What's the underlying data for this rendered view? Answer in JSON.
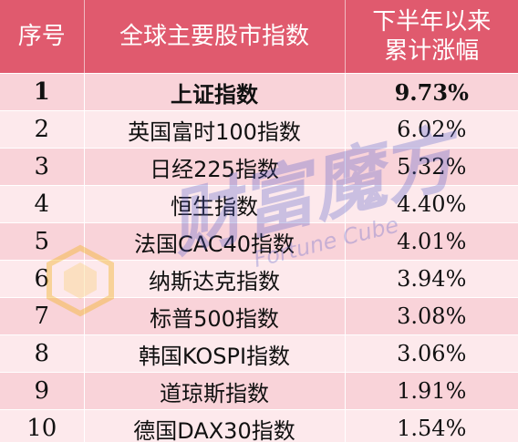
{
  "header": {
    "rank_label": "序号",
    "name_label": "全球主要股市指数",
    "change_label_line1": "下半年以来",
    "change_label_line2": "累计涨幅"
  },
  "rows": [
    {
      "rank": "1",
      "name": "上证指数",
      "change": "9.73%"
    },
    {
      "rank": "2",
      "name": "英国富时100指数",
      "change": "6.02%"
    },
    {
      "rank": "3",
      "name": "日经225指数",
      "change": "5.32%"
    },
    {
      "rank": "4",
      "name": "恒生指数",
      "change": "4.40%"
    },
    {
      "rank": "5",
      "name": "法国CAC40指数",
      "change": "4.01%"
    },
    {
      "rank": "6",
      "name": "纳斯达克指数",
      "change": "3.94%"
    },
    {
      "rank": "7",
      "name": "标普500指数",
      "change": "3.08%"
    },
    {
      "rank": "8",
      "name": "韩国KOSPI指数",
      "change": "3.06%"
    },
    {
      "rank": "9",
      "name": "道琼斯指数",
      "change": "1.91%"
    },
    {
      "rank": "10",
      "name": "德国DAX30指数",
      "change": "1.54%"
    }
  ],
  "watermark": {
    "chinese": "财富魔方",
    "english": "Fortune Cube"
  },
  "colors": {
    "header_bg": "#e05a6e",
    "row_dark": "#f9d3d9",
    "row_light": "#fde9ec",
    "watermark": "#4a55c8"
  }
}
